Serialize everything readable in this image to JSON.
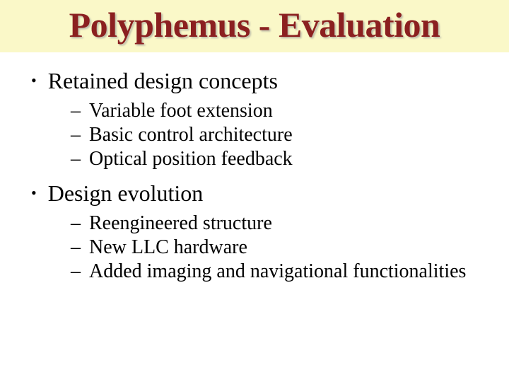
{
  "slide": {
    "title": "Polyphemus - Evaluation",
    "title_bg": "#faf8c8",
    "title_color": "#8b2020",
    "title_fontsize": 50,
    "body_fontsize_main": 32,
    "body_fontsize_sub": 28,
    "body_color": "#000000",
    "background_color": "#ffffff",
    "bullets": [
      {
        "text": "Retained design concepts",
        "subs": [
          "Variable foot extension",
          "Basic control architecture",
          "Optical position feedback"
        ]
      },
      {
        "text": "Design evolution",
        "subs": [
          "Reengineered structure",
          "New LLC hardware",
          "Added imaging and navigational functionalities"
        ]
      }
    ]
  }
}
